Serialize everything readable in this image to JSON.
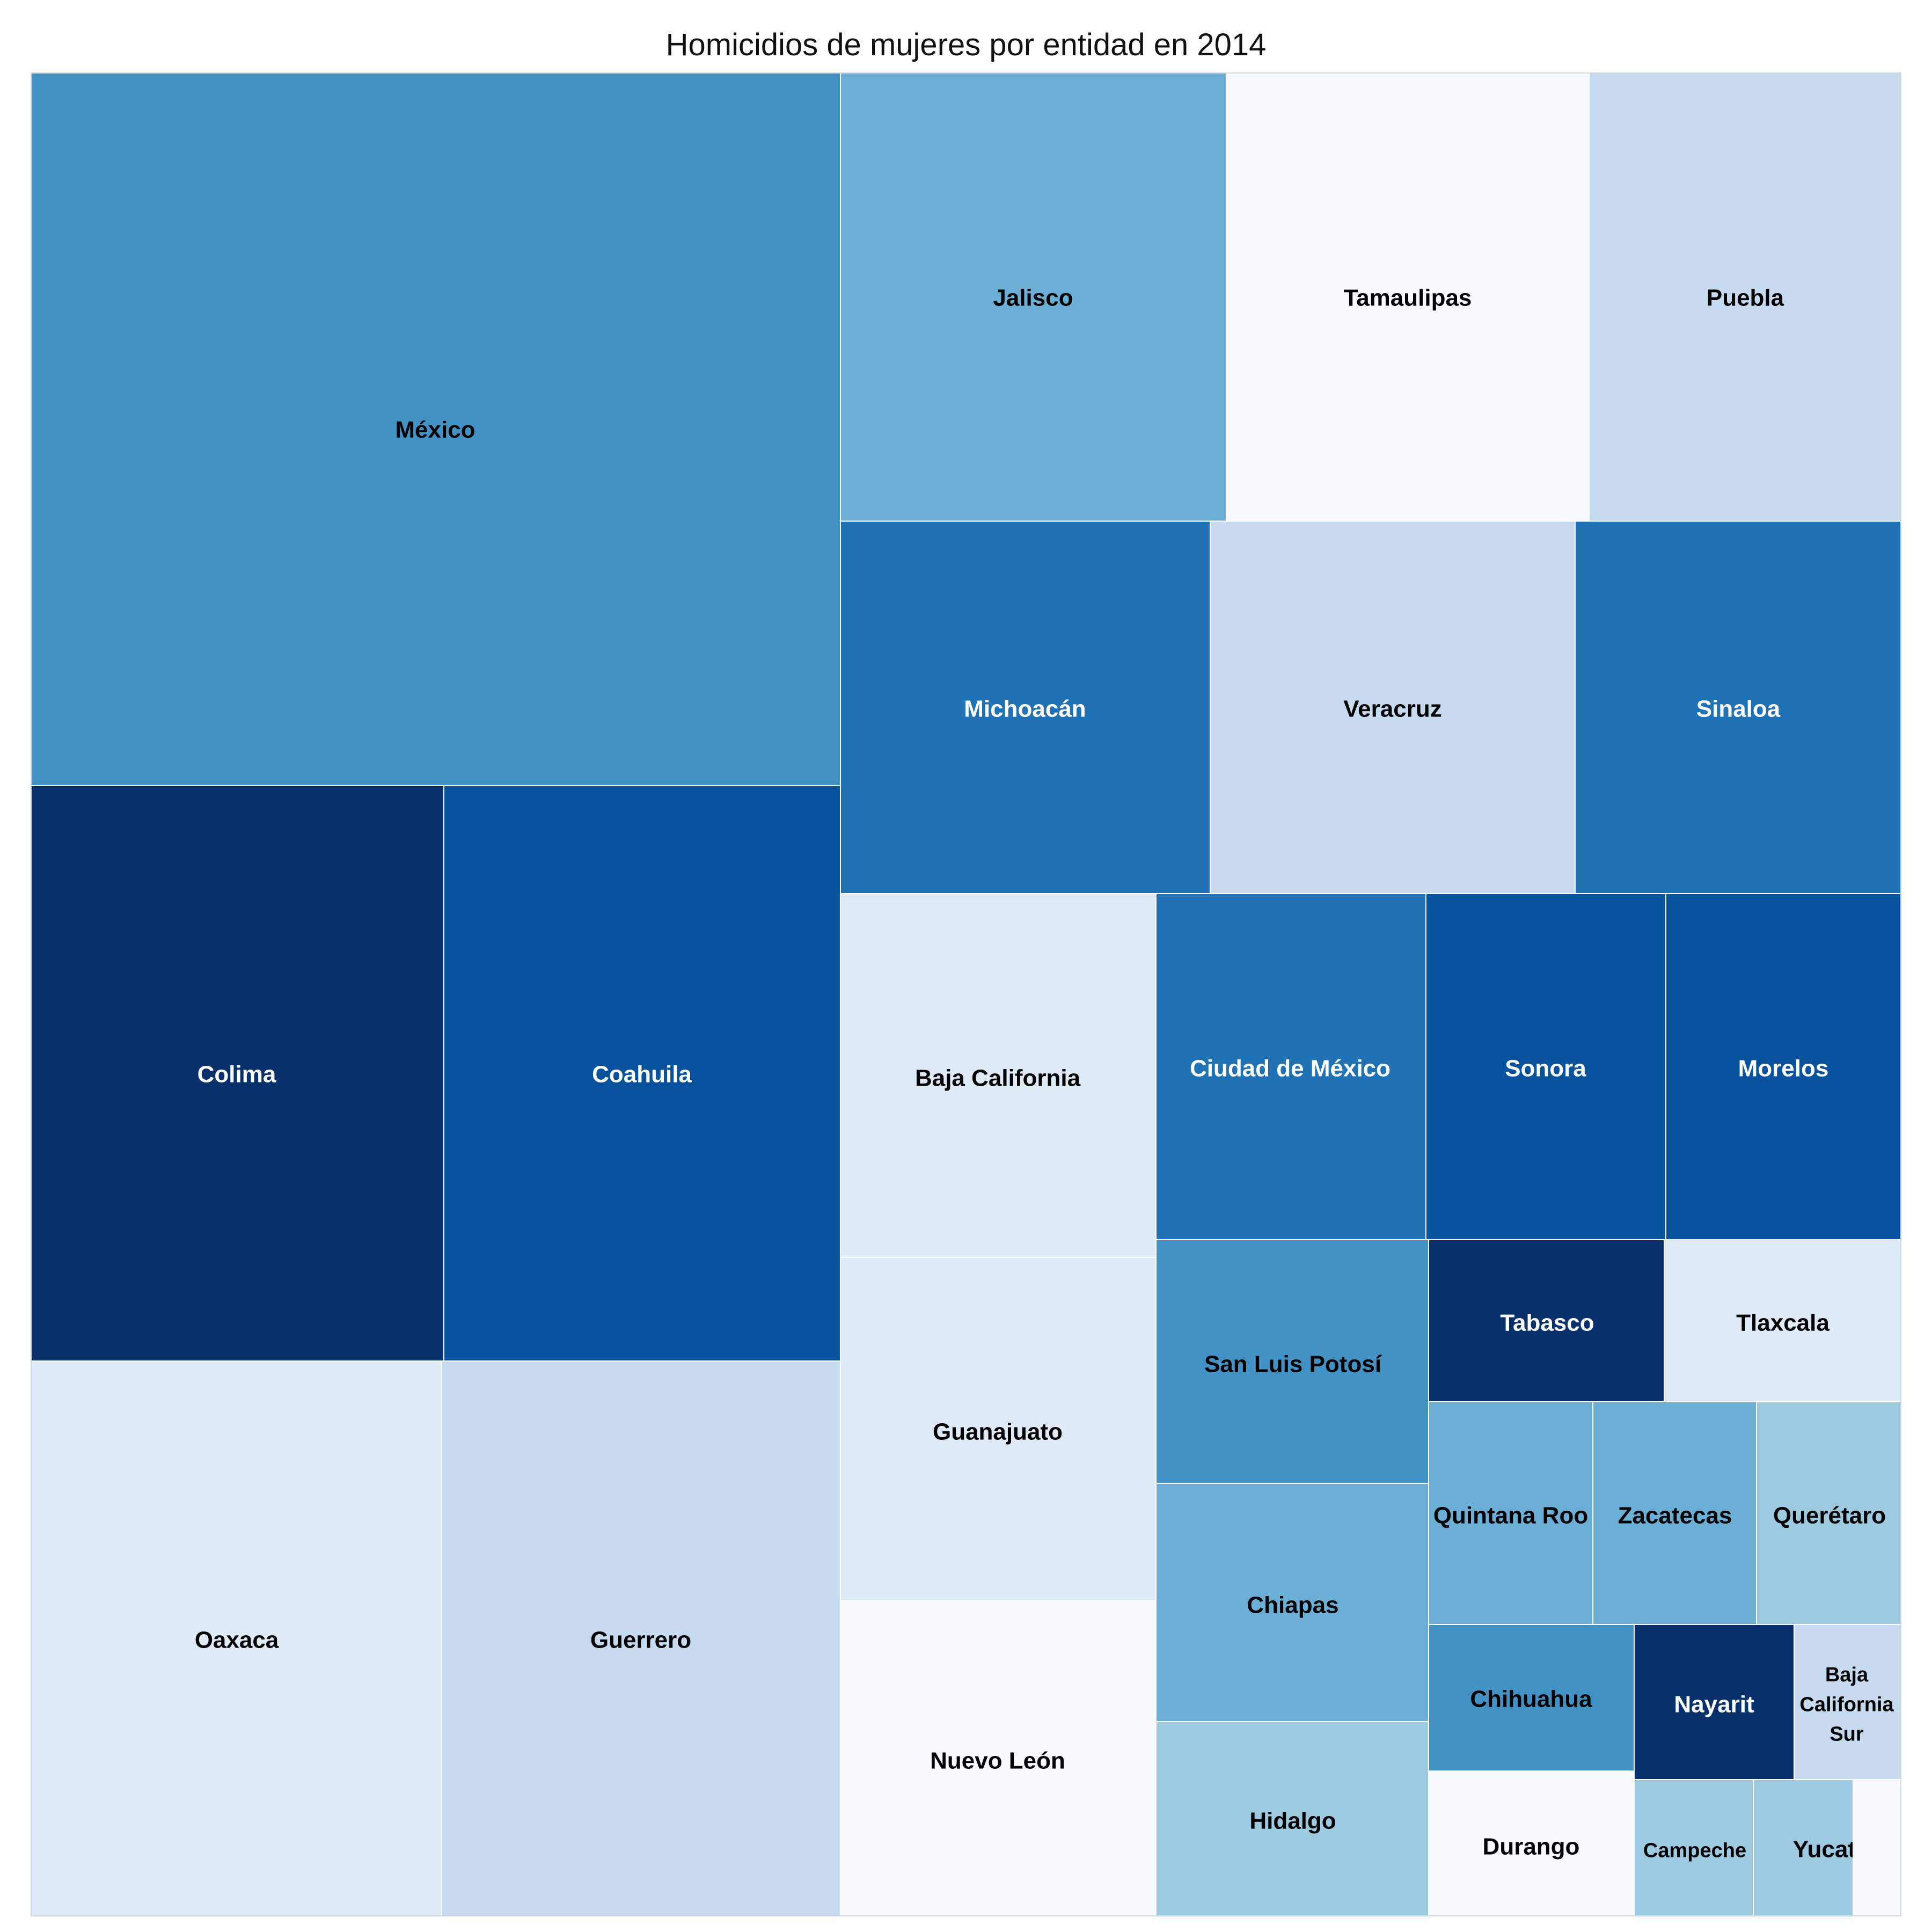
{
  "chart_data": {
    "type": "treemap",
    "title": "Homicidios de mujeres por entidad en 2014",
    "legend": "none",
    "color_scale": [
      "#f7fbff",
      "#deebf7",
      "#c6dbef",
      "#9ecae1",
      "#6baed6",
      "#4292c6",
      "#2171b5",
      "#08519c",
      "#08306b"
    ],
    "tiles": [
      {
        "label": "México",
        "area": 376,
        "color_level": 5
      },
      {
        "label": "Colima",
        "area": 156,
        "color_level": 8
      },
      {
        "label": "Coahuila",
        "area": 150,
        "color_level": 7
      },
      {
        "label": "Oaxaca",
        "area": 155,
        "color_level": 1
      },
      {
        "label": "Guerrero",
        "area": 150,
        "color_level": 2
      },
      {
        "label": "Jalisco",
        "area": 113,
        "color_level": 4
      },
      {
        "label": "Tamaulipas",
        "area": 107,
        "color_level": 0
      },
      {
        "label": "Puebla",
        "area": 88,
        "color_level": 2
      },
      {
        "label": "Michoacán",
        "area": 90,
        "color_level": 6
      },
      {
        "label": "Veracruz",
        "area": 89,
        "color_level": 2
      },
      {
        "label": "Sinaloa",
        "area": 79,
        "color_level": 6
      },
      {
        "label": "Baja California",
        "area": 75,
        "color_level": 1
      },
      {
        "label": "Guanajuato",
        "area": 71,
        "color_level": 1
      },
      {
        "label": "Nuevo León",
        "area": 65,
        "color_level": 0
      },
      {
        "label": "Ciudad de México",
        "area": 61,
        "color_level": 6
      },
      {
        "label": "Sonora",
        "area": 55,
        "color_level": 7
      },
      {
        "label": "Morelos",
        "area": 53,
        "color_level": 7
      },
      {
        "label": "San Luis Potosí",
        "area": 43,
        "color_level": 5
      },
      {
        "label": "Chiapas",
        "area": 42,
        "color_level": 4
      },
      {
        "label": "Hidalgo",
        "area": 35,
        "color_level": 3
      },
      {
        "label": "Tabasco",
        "area": 25,
        "color_level": 8
      },
      {
        "label": "Tlaxcala",
        "area": 25,
        "color_level": 1
      },
      {
        "label": "Quintana Roo",
        "area": 24,
        "color_level": 4
      },
      {
        "label": "Zacatecas",
        "area": 24,
        "color_level": 4
      },
      {
        "label": "Querétaro",
        "area": 24,
        "color_level": 3
      },
      {
        "label": "Chihuahua",
        "area": 20,
        "color_level": 5
      },
      {
        "label": "Nayarit",
        "area": 19,
        "color_level": 8
      },
      {
        "label": "Baja California Sur",
        "area": 11,
        "color_level": 2
      },
      {
        "label": "Durango",
        "area": 20,
        "color_level": 0
      },
      {
        "label": "Campeche",
        "area": 10,
        "color_level": 3
      },
      {
        "label": "Yucatán",
        "area": 7,
        "color_level": 3
      },
      {
        "label": "",
        "area": 3,
        "color_level": 0
      }
    ]
  }
}
